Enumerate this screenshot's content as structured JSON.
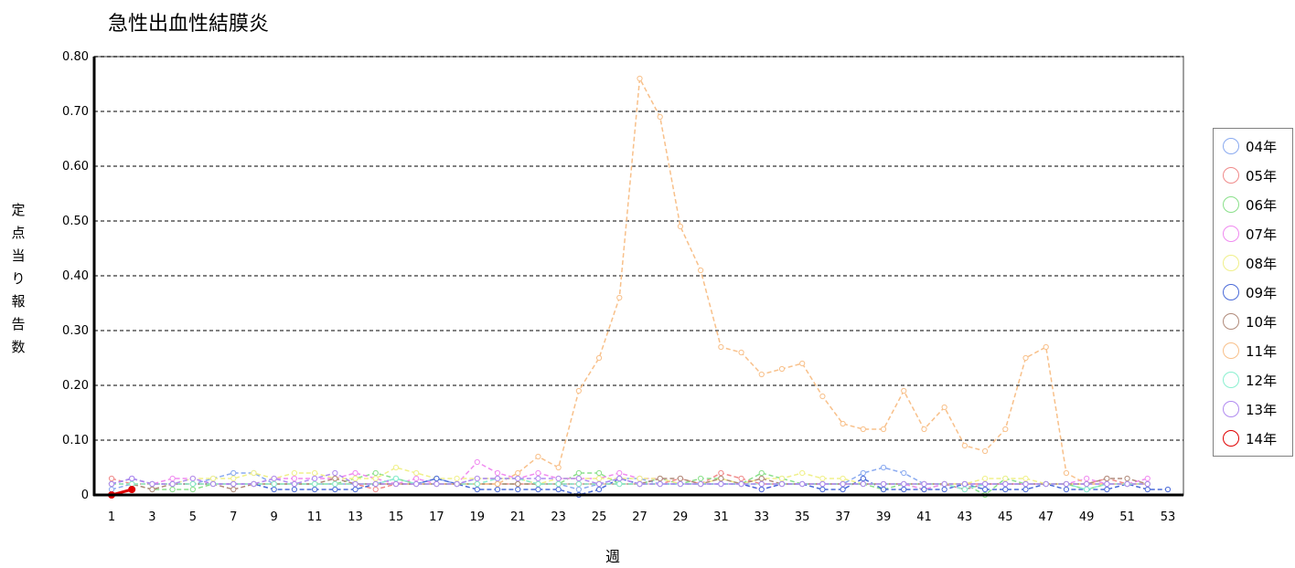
{
  "chart_data": {
    "type": "line",
    "title": "急性出血性結膜炎",
    "xlabel": "週",
    "ylabel": "定点当り報告数",
    "ylim": [
      0,
      0.8
    ],
    "xlim": [
      1,
      53
    ],
    "y_ticks": [
      "0",
      "0.10",
      "0.20",
      "0.30",
      "0.40",
      "0.50",
      "0.60",
      "0.70",
      "0.80"
    ],
    "x_ticks": [
      "1",
      "3",
      "5",
      "7",
      "9",
      "11",
      "13",
      "15",
      "17",
      "19",
      "21",
      "23",
      "25",
      "27",
      "29",
      "31",
      "33",
      "35",
      "37",
      "39",
      "41",
      "43",
      "45",
      "47",
      "49",
      "51",
      "53"
    ],
    "grid": "dashed horizontal",
    "legend_position": "right",
    "series": [
      {
        "name": "04年",
        "color": "#8aaaf0",
        "values": [
          0.01,
          0.02,
          0.02,
          0.02,
          0.02,
          0.03,
          0.04,
          0.04,
          0.02,
          0.02,
          0.02,
          0.02,
          0.02,
          0.02,
          0.03,
          0.02,
          0.03,
          0.02,
          0.03,
          0.03,
          0.03,
          0.02,
          0.02,
          0.01,
          0.02,
          0.03,
          0.03,
          0.02,
          0.02,
          0.02,
          0.02,
          0.02,
          0.02,
          0.02,
          0.02,
          0.02,
          0.02,
          0.04,
          0.05,
          0.04,
          0.02,
          0.02,
          0.02,
          0.02,
          0.02,
          0.02,
          0.02,
          0.02,
          0.02,
          0.02,
          0.02,
          0.02
        ]
      },
      {
        "name": "05年",
        "color": "#f08a8a",
        "values": [
          0.03,
          0.02,
          0.02,
          0.02,
          0.02,
          0.02,
          0.02,
          0.02,
          0.02,
          0.02,
          0.02,
          0.02,
          0.02,
          0.01,
          0.02,
          0.02,
          0.02,
          0.02,
          0.02,
          0.02,
          0.02,
          0.02,
          0.02,
          0.02,
          0.02,
          0.02,
          0.02,
          0.02,
          0.03,
          0.02,
          0.04,
          0.03,
          0.02,
          0.02,
          0.02,
          0.02,
          0.02,
          0.02,
          0.02,
          0.02,
          0.02,
          0.02,
          0.02,
          0.02,
          0.02,
          0.02,
          0.02,
          0.02,
          0.02,
          0.03,
          0.02,
          0.02
        ]
      },
      {
        "name": "06年",
        "color": "#8ae08a",
        "values": [
          0.02,
          0.02,
          0.01,
          0.01,
          0.01,
          0.02,
          0.02,
          0.02,
          0.02,
          0.02,
          0.02,
          0.02,
          0.03,
          0.04,
          0.03,
          0.02,
          0.02,
          0.02,
          0.02,
          0.02,
          0.02,
          0.02,
          0.02,
          0.04,
          0.04,
          0.02,
          0.02,
          0.03,
          0.02,
          0.03,
          0.03,
          0.02,
          0.04,
          0.03,
          0.02,
          0.02,
          0.02,
          0.02,
          0.01,
          0.02,
          0.01,
          0.02,
          0.02,
          0.0,
          0.03,
          0.02,
          0.02,
          0.02,
          0.01,
          0.02,
          0.02,
          0.02
        ]
      },
      {
        "name": "07年",
        "color": "#f08af0",
        "values": [
          0.02,
          0.03,
          0.02,
          0.03,
          0.03,
          0.02,
          0.02,
          0.02,
          0.03,
          0.03,
          0.03,
          0.03,
          0.04,
          0.03,
          0.02,
          0.03,
          0.02,
          0.02,
          0.06,
          0.04,
          0.03,
          0.04,
          0.03,
          0.03,
          0.03,
          0.04,
          0.03,
          0.03,
          0.02,
          0.02,
          0.02,
          0.02,
          0.01,
          0.02,
          0.02,
          0.02,
          0.02,
          0.02,
          0.02,
          0.02,
          0.01,
          0.02,
          0.01,
          0.02,
          0.02,
          0.02,
          0.02,
          0.02,
          0.03,
          0.02,
          0.02,
          0.03
        ]
      },
      {
        "name": "08年",
        "color": "#f0f08a",
        "values": [
          0.02,
          0.02,
          0.02,
          0.02,
          0.03,
          0.03,
          0.03,
          0.04,
          0.03,
          0.04,
          0.04,
          0.03,
          0.03,
          0.03,
          0.05,
          0.04,
          0.03,
          0.03,
          0.03,
          0.03,
          0.03,
          0.02,
          0.03,
          0.03,
          0.03,
          0.03,
          0.03,
          0.03,
          0.02,
          0.02,
          0.03,
          0.02,
          0.03,
          0.03,
          0.04,
          0.03,
          0.03,
          0.02,
          0.02,
          0.02,
          0.02,
          0.02,
          0.02,
          0.03,
          0.03,
          0.03,
          0.02,
          0.02,
          0.02,
          0.02,
          0.02,
          0.02
        ]
      },
      {
        "name": "09年",
        "color": "#4a6ad8",
        "values": [
          0.02,
          0.03,
          0.02,
          0.02,
          0.02,
          0.02,
          0.02,
          0.02,
          0.01,
          0.01,
          0.01,
          0.01,
          0.01,
          0.02,
          0.02,
          0.02,
          0.03,
          0.02,
          0.01,
          0.01,
          0.01,
          0.01,
          0.01,
          0.0,
          0.01,
          0.03,
          0.02,
          0.02,
          0.02,
          0.02,
          0.02,
          0.02,
          0.01,
          0.02,
          0.02,
          0.01,
          0.01,
          0.03,
          0.01,
          0.01,
          0.01,
          0.01,
          0.02,
          0.01,
          0.01,
          0.01,
          0.02,
          0.01,
          0.01,
          0.01,
          0.02,
          0.01,
          0.01
        ]
      },
      {
        "name": "10年",
        "color": "#b08a7a",
        "values": [
          0.02,
          0.02,
          0.01,
          0.02,
          0.02,
          0.02,
          0.01,
          0.02,
          0.02,
          0.02,
          0.02,
          0.03,
          0.02,
          0.02,
          0.02,
          0.02,
          0.02,
          0.02,
          0.02,
          0.02,
          0.02,
          0.02,
          0.02,
          0.02,
          0.02,
          0.02,
          0.02,
          0.03,
          0.03,
          0.02,
          0.03,
          0.02,
          0.03,
          0.02,
          0.02,
          0.02,
          0.02,
          0.02,
          0.02,
          0.02,
          0.02,
          0.02,
          0.01,
          0.02,
          0.02,
          0.02,
          0.02,
          0.02,
          0.02,
          0.03,
          0.03,
          0.02
        ]
      },
      {
        "name": "11年",
        "color": "#f8c08a",
        "values": [
          0.02,
          0.02,
          0.02,
          0.02,
          0.02,
          0.02,
          0.02,
          0.02,
          0.02,
          0.02,
          0.02,
          0.02,
          0.02,
          0.02,
          0.02,
          0.02,
          0.02,
          0.02,
          0.02,
          0.02,
          0.04,
          0.07,
          0.05,
          0.19,
          0.25,
          0.36,
          0.76,
          0.69,
          0.49,
          0.41,
          0.27,
          0.26,
          0.22,
          0.23,
          0.24,
          0.18,
          0.13,
          0.12,
          0.12,
          0.19,
          0.12,
          0.16,
          0.09,
          0.08,
          0.12,
          0.25,
          0.27,
          0.04,
          0.02,
          0.02,
          0.02,
          0.02
        ]
      },
      {
        "name": "12年",
        "color": "#8af0d0",
        "values": [
          0.02,
          0.02,
          0.02,
          0.02,
          0.02,
          0.02,
          0.02,
          0.02,
          0.02,
          0.02,
          0.02,
          0.02,
          0.02,
          0.02,
          0.03,
          0.02,
          0.02,
          0.02,
          0.02,
          0.03,
          0.03,
          0.02,
          0.02,
          0.02,
          0.02,
          0.02,
          0.02,
          0.02,
          0.02,
          0.02,
          0.02,
          0.02,
          0.02,
          0.02,
          0.02,
          0.02,
          0.02,
          0.02,
          0.02,
          0.02,
          0.02,
          0.02,
          0.01,
          0.02,
          0.02,
          0.02,
          0.02,
          0.02,
          0.01,
          0.02,
          0.02,
          0.02
        ]
      },
      {
        "name": "13年",
        "color": "#b08af0",
        "values": [
          0.02,
          0.03,
          0.02,
          0.02,
          0.03,
          0.02,
          0.02,
          0.02,
          0.03,
          0.02,
          0.03,
          0.04,
          0.02,
          0.02,
          0.02,
          0.02,
          0.02,
          0.02,
          0.03,
          0.03,
          0.03,
          0.03,
          0.03,
          0.03,
          0.02,
          0.03,
          0.02,
          0.02,
          0.02,
          0.02,
          0.02,
          0.02,
          0.02,
          0.02,
          0.02,
          0.02,
          0.02,
          0.02,
          0.02,
          0.02,
          0.02,
          0.02,
          0.02,
          0.02,
          0.02,
          0.02,
          0.02,
          0.02,
          0.02,
          0.02,
          0.02,
          0.02
        ]
      },
      {
        "name": "14年",
        "color": "#e00000",
        "values": [
          0.0,
          0.01
        ]
      }
    ]
  }
}
